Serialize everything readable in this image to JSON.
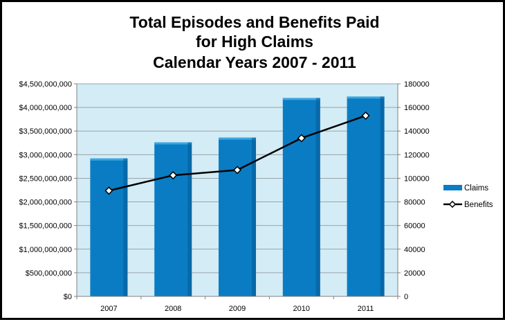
{
  "chart_data": {
    "type": "bar",
    "title_lines": [
      "Total Episodes and Benefits Paid",
      "for High Claims",
      "Calendar Years 2007 - 2011"
    ],
    "categories": [
      "2007",
      "2008",
      "2009",
      "2010",
      "2011"
    ],
    "series": [
      {
        "name": "Claims",
        "type": "bar",
        "axis": "left",
        "color": "#0a7cc4",
        "values": [
          2920000000,
          3260000000,
          3360000000,
          4200000000,
          4230000000
        ]
      },
      {
        "name": "Benefits",
        "type": "line",
        "axis": "right",
        "color": "#000000",
        "values": [
          89500,
          102500,
          107000,
          134000,
          153000
        ]
      }
    ],
    "y_left": {
      "ylim": [
        0,
        4500000000
      ],
      "ticks": [
        0,
        500000000,
        1000000000,
        1500000000,
        2000000000,
        2500000000,
        3000000000,
        3500000000,
        4000000000,
        4500000000
      ],
      "tick_labels": [
        "$0",
        "$500,000,000",
        "$1,000,000,000",
        "$1,500,000,000",
        "$2,000,000,000",
        "$2,500,000,000",
        "$3,000,000,000",
        "$3,500,000,000",
        "$4,000,000,000",
        "$4,500,000,000"
      ]
    },
    "y_right": {
      "ylim": [
        0,
        180000
      ],
      "ticks": [
        0,
        20000,
        40000,
        60000,
        80000,
        100000,
        120000,
        140000,
        160000,
        180000
      ],
      "tick_labels": [
        "0",
        "20000",
        "40000",
        "60000",
        "80000",
        "100000",
        "120000",
        "140000",
        "160000",
        "180000"
      ]
    },
    "grid": true,
    "legend_position": "right",
    "plot_background": "#d3ecf5",
    "gridline_color": "#9aa3aa"
  }
}
